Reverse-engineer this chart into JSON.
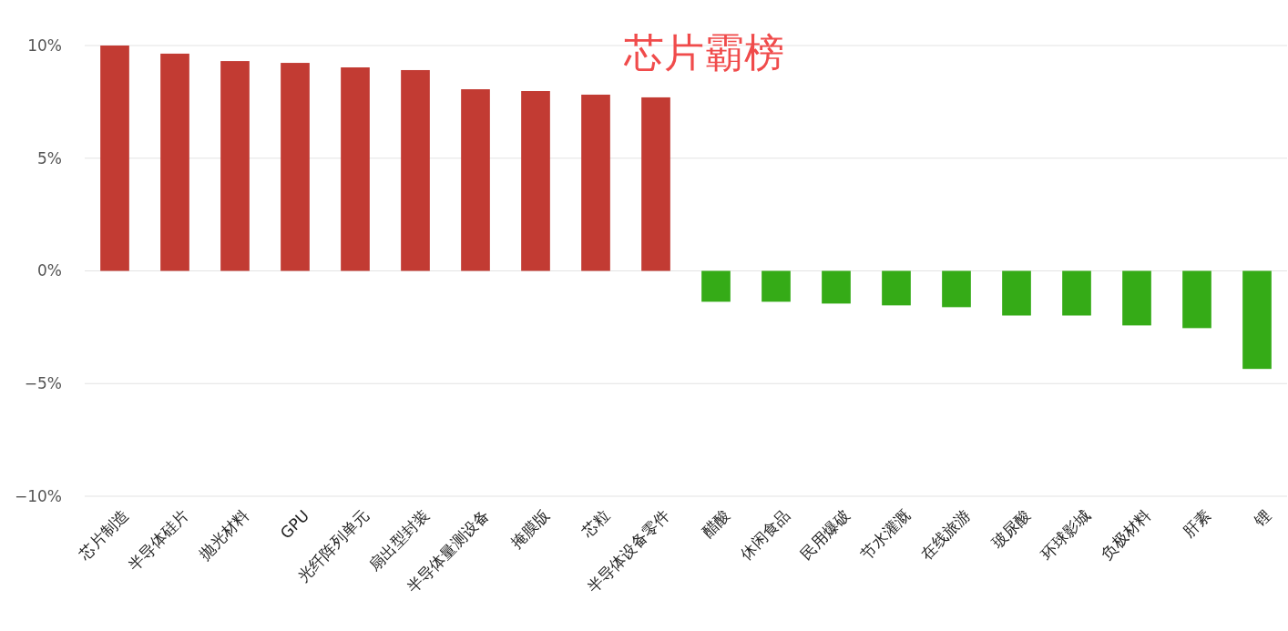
{
  "chart_data": {
    "type": "bar",
    "title": "芯片霸榜",
    "categories": [
      "芯片制造",
      "半导体硅片",
      "抛光材料",
      "GPU",
      "光纤阵列单元",
      "扇出型封装",
      "半导体量测设备",
      "掩膜版",
      "芯粒",
      "半导体设备零件",
      "醋酸",
      "休闲食品",
      "民用爆破",
      "节水灌溉",
      "在线旅游",
      "玻尿酸",
      "环球影城",
      "负极材料",
      "肝素",
      "锂"
    ],
    "values": [
      10,
      9.64,
      9.31,
      9.23,
      9.03,
      8.91,
      8.06,
      7.98,
      7.82,
      7.7,
      -1.37,
      -1.37,
      -1.45,
      -1.53,
      -1.61,
      -1.98,
      -1.98,
      -2.42,
      -2.54,
      -4.35
    ],
    "colors": [
      "#c23b33",
      "#c23b33",
      "#c23b33",
      "#c23b33",
      "#c23b33",
      "#c23b33",
      "#c23b33",
      "#c23b33",
      "#c23b33",
      "#c23b33",
      "#35ab17",
      "#35ab17",
      "#35ab17",
      "#35ab17",
      "#35ab17",
      "#35ab17",
      "#35ab17",
      "#35ab17",
      "#35ab17",
      "#35ab17"
    ],
    "ylim": [
      -10,
      10
    ],
    "yticks": [
      {
        "value": 10,
        "label": "10%"
      },
      {
        "value": 5,
        "label": "5%"
      },
      {
        "value": 0,
        "label": "0%"
      },
      {
        "value": -5,
        "label": "−5%"
      },
      {
        "value": -10,
        "label": "−10%"
      }
    ],
    "grid": "y"
  }
}
